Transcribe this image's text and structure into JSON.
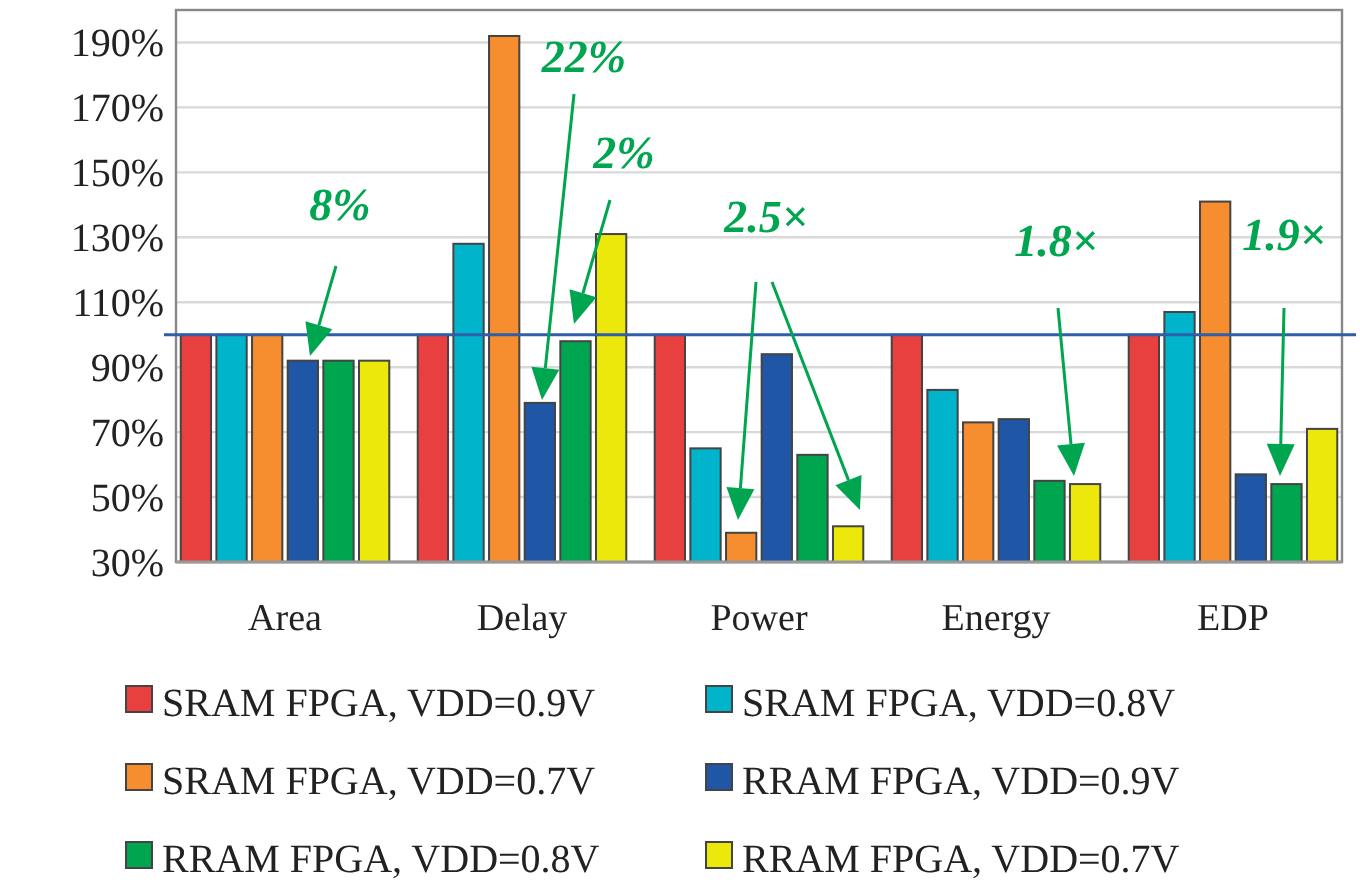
{
  "chart_data": {
    "type": "bar",
    "categories": [
      "Area",
      "Delay",
      "Power",
      "Energy",
      "EDP"
    ],
    "series": [
      {
        "name": "SRAM FPGA, VDD=0.9V",
        "color": "#e8403f",
        "values": [
          100,
          100,
          100,
          100,
          100
        ]
      },
      {
        "name": "SRAM FPGA, VDD=0.8V",
        "color": "#00b4cc",
        "values": [
          100,
          128,
          65,
          83,
          107
        ]
      },
      {
        "name": "SRAM FPGA, VDD=0.7V",
        "color": "#f68d2e",
        "values": [
          100,
          192,
          39,
          73,
          141
        ]
      },
      {
        "name": "RRAM FPGA, VDD=0.9V",
        "color": "#1f56a5",
        "values": [
          92,
          79,
          94,
          74,
          57
        ]
      },
      {
        "name": "RRAM FPGA, VDD=0.8V",
        "color": "#00a550",
        "values": [
          92,
          98,
          63,
          55,
          54
        ]
      },
      {
        "name": "RRAM FPGA, VDD=0.7V",
        "color": "#ede80c",
        "values": [
          92,
          131,
          41,
          54,
          71
        ]
      }
    ],
    "ylim": [
      30,
      200
    ],
    "yticks": [
      {
        "value": 30,
        "label": "30%"
      },
      {
        "value": 50,
        "label": "50%"
      },
      {
        "value": 70,
        "label": "70%"
      },
      {
        "value": 90,
        "label": "90%"
      },
      {
        "value": 110,
        "label": "110%"
      },
      {
        "value": 130,
        "label": "130%"
      },
      {
        "value": 150,
        "label": "150%"
      },
      {
        "value": 170,
        "label": "170%"
      },
      {
        "value": 190,
        "label": "190%"
      }
    ],
    "grid": "y",
    "legend": "bottom",
    "ref_lines": [
      {
        "axis": "y",
        "value": 100,
        "color": "#2e5fa8"
      }
    ],
    "annotations": [
      "8%",
      "22%",
      "2%",
      "2.5×",
      "1.8×",
      "1.9×"
    ]
  }
}
